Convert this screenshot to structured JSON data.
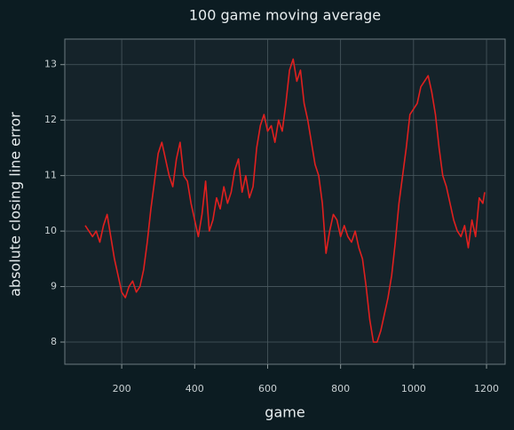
{
  "chart_data": {
    "type": "line",
    "title": "100 game moving average",
    "x_label": "game",
    "y_label": "absolute closing line error",
    "x": [
      100,
      110,
      120,
      130,
      140,
      150,
      160,
      170,
      180,
      190,
      200,
      210,
      220,
      230,
      240,
      250,
      260,
      270,
      280,
      290,
      300,
      310,
      320,
      330,
      340,
      350,
      360,
      370,
      380,
      390,
      400,
      410,
      420,
      430,
      440,
      450,
      460,
      470,
      480,
      490,
      500,
      510,
      520,
      530,
      540,
      550,
      560,
      570,
      580,
      590,
      600,
      610,
      620,
      630,
      640,
      650,
      660,
      670,
      680,
      690,
      700,
      710,
      720,
      730,
      740,
      750,
      760,
      770,
      780,
      790,
      800,
      810,
      820,
      830,
      840,
      850,
      860,
      870,
      880,
      890,
      900,
      910,
      920,
      930,
      940,
      950,
      960,
      970,
      980,
      990,
      1000,
      1010,
      1020,
      1030,
      1040,
      1050,
      1060,
      1070,
      1080,
      1090,
      1100,
      1110,
      1120,
      1130,
      1140,
      1150,
      1160,
      1170,
      1180,
      1190,
      1195
    ],
    "series": [
      {
        "name": "moving average",
        "color": "#e0201f",
        "values": [
          10.1,
          10.0,
          9.9,
          10.0,
          9.8,
          10.1,
          10.3,
          9.9,
          9.5,
          9.2,
          8.9,
          8.8,
          9.0,
          9.1,
          8.9,
          9.0,
          9.3,
          9.8,
          10.4,
          10.9,
          11.4,
          11.6,
          11.3,
          11.0,
          10.8,
          11.3,
          11.6,
          11.0,
          10.9,
          10.5,
          10.2,
          9.9,
          10.3,
          10.9,
          10.0,
          10.2,
          10.6,
          10.4,
          10.8,
          10.5,
          10.7,
          11.1,
          11.3,
          10.7,
          11.0,
          10.6,
          10.8,
          11.5,
          11.9,
          12.1,
          11.8,
          11.9,
          11.6,
          12.0,
          11.8,
          12.3,
          12.9,
          13.1,
          12.7,
          12.9,
          12.3,
          12.0,
          11.6,
          11.2,
          11.0,
          10.5,
          9.6,
          10.0,
          10.3,
          10.2,
          9.9,
          10.1,
          9.9,
          9.8,
          10.0,
          9.7,
          9.5,
          9.0,
          8.4,
          8.0,
          8.0,
          8.2,
          8.5,
          8.8,
          9.2,
          9.8,
          10.5,
          11.0,
          11.5,
          12.1,
          12.2,
          12.3,
          12.6,
          12.7,
          12.8,
          12.5,
          12.1,
          11.5,
          11.0,
          10.8,
          10.5,
          10.2,
          10.0,
          9.9,
          10.1,
          9.7,
          10.2,
          9.9,
          10.6,
          10.5,
          10.7
        ]
      }
    ],
    "xlim": [
      44,
      1251
    ],
    "ylim": [
      7.6,
      13.46
    ],
    "xticks": [
      200,
      400,
      600,
      800,
      1000,
      1200
    ],
    "yticks": [
      8,
      9,
      10,
      11,
      12,
      13
    ],
    "grid": true
  }
}
